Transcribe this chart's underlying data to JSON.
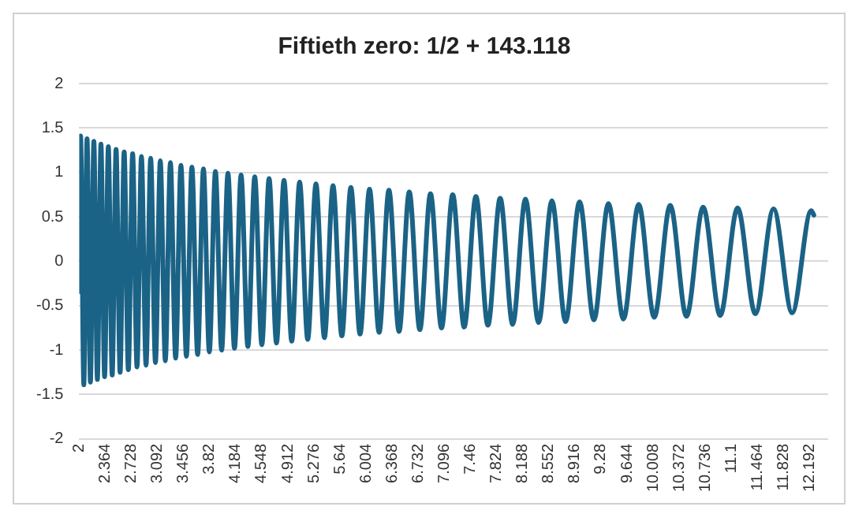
{
  "chart_data": {
    "type": "line",
    "title": "Fiftieth zero: 1/2 + 143.118",
    "x": [
      2,
      2.019,
      2.064,
      2.109,
      2.156,
      2.204,
      2.253,
      2.303,
      2.354,
      2.406,
      2.46,
      2.514,
      2.57,
      2.627,
      2.685,
      2.745,
      2.806,
      2.868,
      2.932,
      2.997,
      3.063,
      3.131,
      3.201,
      3.272,
      3.345,
      3.419,
      3.495,
      3.572,
      3.652,
      3.733,
      3.815,
      3.9,
      3.987,
      4.075,
      4.166,
      4.258,
      4.353,
      4.449,
      4.548,
      4.649,
      4.752,
      4.857,
      4.965,
      5.075,
      5.188,
      5.303,
      5.421,
      5.541,
      5.664,
      5.79,
      5.918,
      6.05,
      6.184,
      6.321,
      6.462,
      6.605,
      6.752,
      6.901,
      7.055,
      7.211,
      7.371,
      7.535,
      7.702,
      7.873,
      8.048,
      8.226,
      8.409,
      8.595,
      8.786,
      8.981,
      9.181,
      9.384,
      9.593,
      9.806,
      10.023,
      10.246,
      10.473,
      10.705,
      10.943,
      11.186,
      11.434,
      11.688,
      11.947,
      12.213,
      12.25
    ],
    "series": [
      {
        "color": "#1b6386",
        "values": [
          -0.34,
          1.41,
          -1.39,
          1.38,
          -1.36,
          1.35,
          -1.33,
          1.32,
          -1.3,
          1.29,
          -1.28,
          1.26,
          -1.25,
          1.23,
          -1.22,
          1.21,
          -1.19,
          1.18,
          -1.17,
          1.16,
          -1.14,
          1.13,
          -1.12,
          1.11,
          -1.09,
          1.08,
          -1.07,
          1.06,
          -1.05,
          1.04,
          -1.02,
          1.01,
          -1,
          0.99,
          -0.98,
          0.97,
          -0.96,
          0.95,
          -0.94,
          0.93,
          -0.92,
          0.91,
          -0.9,
          0.89,
          -0.88,
          0.87,
          -0.86,
          0.85,
          -0.84,
          0.83,
          -0.82,
          0.81,
          -0.8,
          0.8,
          -0.79,
          0.78,
          -0.77,
          0.76,
          -0.75,
          0.75,
          -0.74,
          0.73,
          -0.72,
          0.71,
          -0.71,
          0.7,
          -0.69,
          0.68,
          -0.68,
          0.67,
          -0.66,
          0.65,
          -0.65,
          0.64,
          -0.63,
          0.63,
          -0.62,
          0.61,
          -0.61,
          0.6,
          -0.59,
          0.59,
          -0.58,
          0.57,
          0.52
        ]
      }
    ],
    "xlim": [
      2,
      12.45
    ],
    "xticks": [
      2,
      2.364,
      2.728,
      3.092,
      3.456,
      3.82,
      4.184,
      4.548,
      4.912,
      5.276,
      5.64,
      6.004,
      6.368,
      6.732,
      7.096,
      7.46,
      7.824,
      8.188,
      8.552,
      8.916,
      9.28,
      9.644,
      10.008,
      10.372,
      10.736,
      11.1,
      11.464,
      11.828,
      12.192
    ],
    "ylim": [
      -2,
      2
    ],
    "yticks": [
      -2,
      -1.5,
      -1,
      -0.5,
      0,
      0.5,
      1,
      1.5,
      2
    ],
    "grid": "y",
    "legend": false,
    "marker": "none",
    "line_style": "solid"
  }
}
